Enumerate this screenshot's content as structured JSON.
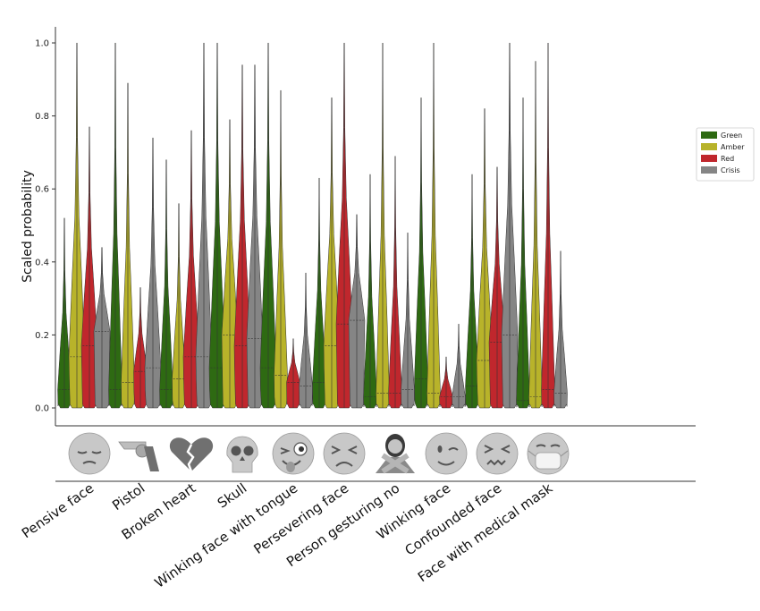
{
  "chart_data": {
    "type": "violin",
    "ylabel": "Scaled probability",
    "xlabel": "",
    "ylim": [
      0.0,
      1.0
    ],
    "yticks": [
      "0.0",
      "0.2",
      "0.4",
      "0.6",
      "0.8",
      "1.0"
    ],
    "legend_position": "right",
    "colors": {
      "Green": "#2e6a12",
      "Amber": "#b8b32a",
      "Red": "#c0272d",
      "Crisis": "#858585"
    },
    "categories": [
      {
        "label": "Pensive face",
        "icon": "pensive-face-icon",
        "stats": {
          "Green": [
            0.05,
            0.52
          ],
          "Amber": [
            0.14,
            1.0
          ],
          "Red": [
            0.17,
            0.77
          ],
          "Crisis": [
            0.21,
            0.44
          ]
        }
      },
      {
        "label": "Pistol",
        "icon": "pistol-icon",
        "stats": {
          "Green": [
            0.05,
            1.0
          ],
          "Amber": [
            0.07,
            0.89
          ],
          "Red": [
            0.1,
            0.33
          ],
          "Crisis": [
            0.11,
            0.74
          ]
        }
      },
      {
        "label": "Broken heart",
        "icon": "broken-heart-icon",
        "stats": {
          "Green": [
            0.05,
            0.68
          ],
          "Amber": [
            0.08,
            0.56
          ],
          "Red": [
            0.14,
            0.76
          ],
          "Crisis": [
            0.14,
            1.0
          ]
        }
      },
      {
        "label": "Skull",
        "icon": "skull-icon",
        "stats": {
          "Green": [
            0.11,
            1.0
          ],
          "Amber": [
            0.2,
            0.79
          ],
          "Red": [
            0.17,
            0.94
          ],
          "Crisis": [
            0.19,
            0.94
          ]
        }
      },
      {
        "label": "Winking face with tongue",
        "icon": "winking-face-with-tongue-icon",
        "stats": {
          "Green": [
            0.11,
            1.0
          ],
          "Amber": [
            0.09,
            0.87
          ],
          "Red": [
            0.07,
            0.19
          ],
          "Crisis": [
            0.06,
            0.37
          ]
        }
      },
      {
        "label": "Persevering face",
        "icon": "persevering-face-icon",
        "stats": {
          "Green": [
            0.07,
            0.63
          ],
          "Amber": [
            0.17,
            0.85
          ],
          "Red": [
            0.23,
            1.0
          ],
          "Crisis": [
            0.24,
            0.53
          ]
        }
      },
      {
        "label": "Person gesturing no",
        "icon": "person-gesturing-no-icon",
        "stats": {
          "Green": [
            0.03,
            0.64
          ],
          "Amber": [
            0.04,
            1.0
          ],
          "Red": [
            0.04,
            0.69
          ],
          "Crisis": [
            0.05,
            0.48
          ]
        }
      },
      {
        "label": "Winking face",
        "icon": "winking-face-icon",
        "stats": {
          "Green": [
            0.08,
            0.85
          ],
          "Amber": [
            0.04,
            1.0
          ],
          "Red": [
            0.03,
            0.14
          ],
          "Crisis": [
            0.03,
            0.23
          ]
        }
      },
      {
        "label": "Confounded face",
        "icon": "confounded-face-icon",
        "stats": {
          "Green": [
            0.06,
            0.64
          ],
          "Amber": [
            0.13,
            0.82
          ],
          "Red": [
            0.18,
            0.66
          ],
          "Crisis": [
            0.2,
            1.0
          ]
        }
      },
      {
        "label": "Face with medical mask",
        "icon": "face-with-medical-mask-icon",
        "stats": {
          "Green": [
            0.02,
            0.85
          ],
          "Amber": [
            0.03,
            0.95
          ],
          "Red": [
            0.05,
            1.0
          ],
          "Crisis": [
            0.04,
            0.43
          ]
        }
      }
    ],
    "series": [
      {
        "name": "Green"
      },
      {
        "name": "Amber"
      },
      {
        "name": "Red"
      },
      {
        "name": "Crisis"
      }
    ]
  }
}
